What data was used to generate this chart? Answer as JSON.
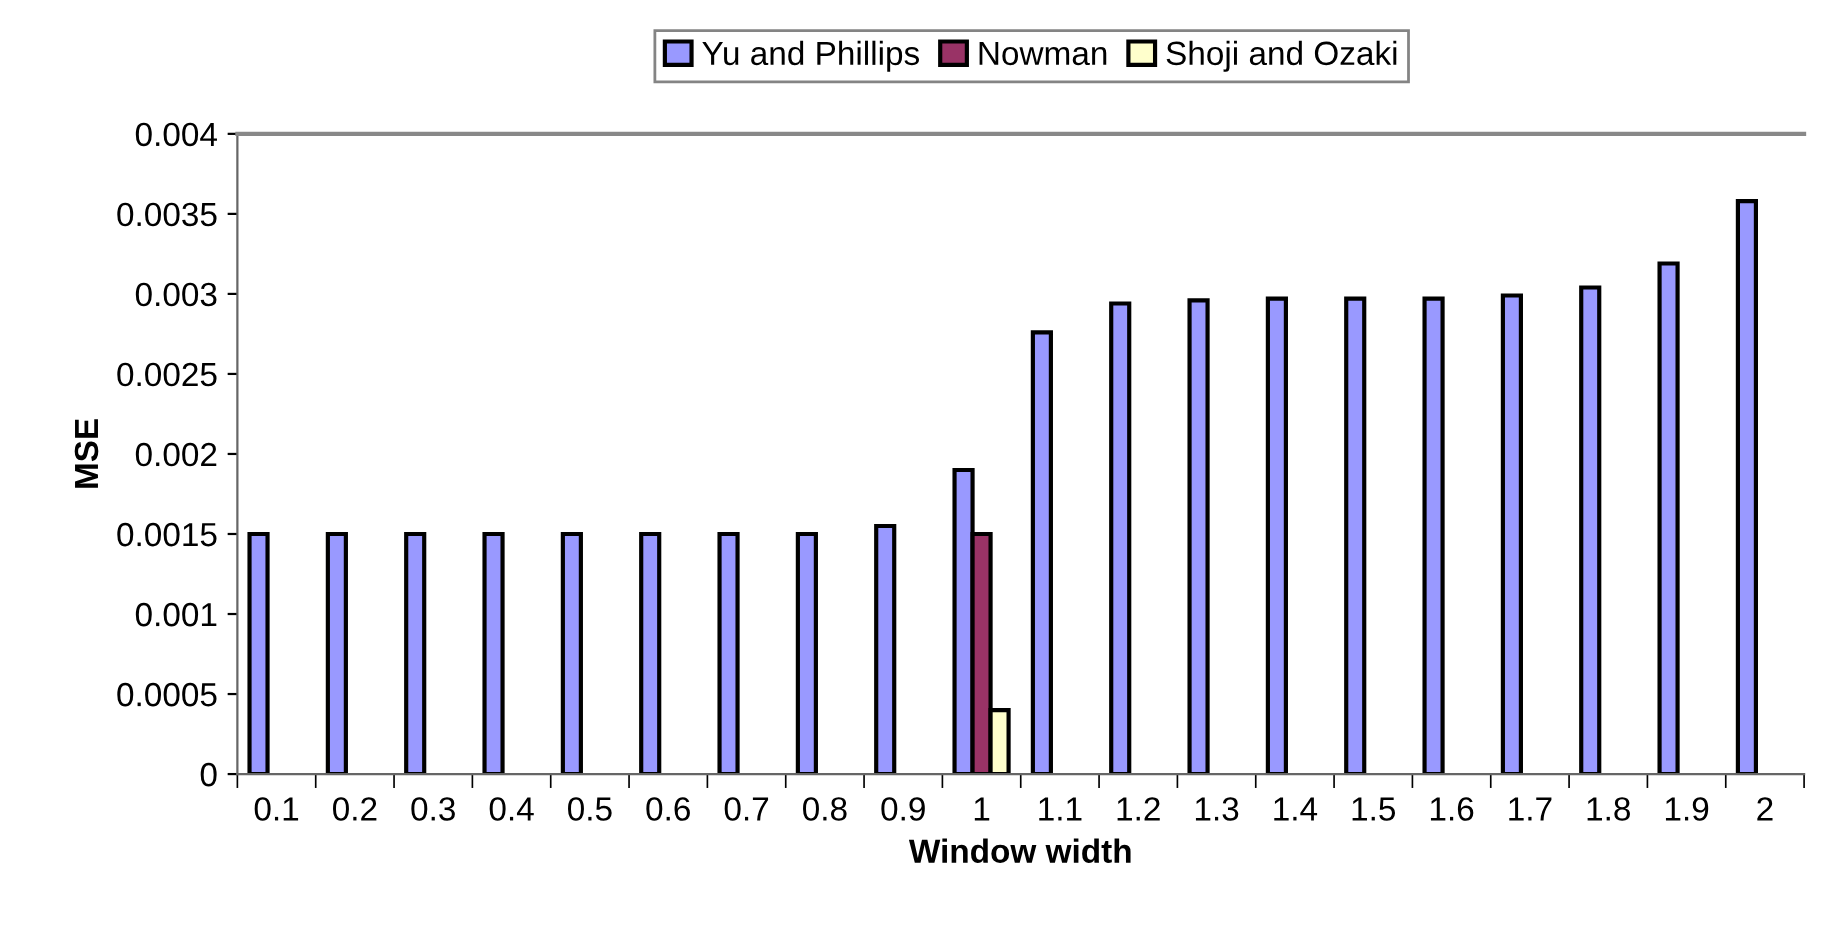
{
  "chart_data": {
    "type": "bar",
    "xlabel": "Window width",
    "ylabel": "MSE",
    "categories": [
      "0.1",
      "0.2",
      "0.3",
      "0.4",
      "0.5",
      "0.6",
      "0.7",
      "0.8",
      "0.9",
      "1",
      "1.1",
      "1.2",
      "1.3",
      "1.4",
      "1.5",
      "1.6",
      "1.7",
      "1.8",
      "1.9",
      "2"
    ],
    "series": [
      {
        "name": "Yu and Phillips",
        "color": "#9999ff",
        "values": [
          0.0015,
          0.0015,
          0.0015,
          0.0015,
          0.0015,
          0.0015,
          0.0015,
          0.0015,
          0.00155,
          0.0019,
          0.00276,
          0.00294,
          0.00296,
          0.00297,
          0.00297,
          0.00297,
          0.00299,
          0.00304,
          0.00319,
          0.00358
        ]
      },
      {
        "name": "Nowman",
        "color": "#993366",
        "values": [
          null,
          null,
          null,
          null,
          null,
          null,
          null,
          null,
          null,
          0.0015,
          null,
          null,
          null,
          null,
          null,
          null,
          null,
          null,
          null,
          null
        ]
      },
      {
        "name": "Shoji and Ozaki",
        "color": "#ffffcc",
        "values": [
          null,
          null,
          null,
          null,
          null,
          null,
          null,
          null,
          null,
          0.0004,
          null,
          null,
          null,
          null,
          null,
          null,
          null,
          null,
          null,
          null
        ]
      }
    ],
    "ylim": [
      0,
      0.004
    ],
    "yticks": [
      0,
      0.0005,
      0.001,
      0.0015,
      0.002,
      0.0025,
      0.003,
      0.0035,
      0.004
    ],
    "grid": false,
    "legend": "top"
  }
}
